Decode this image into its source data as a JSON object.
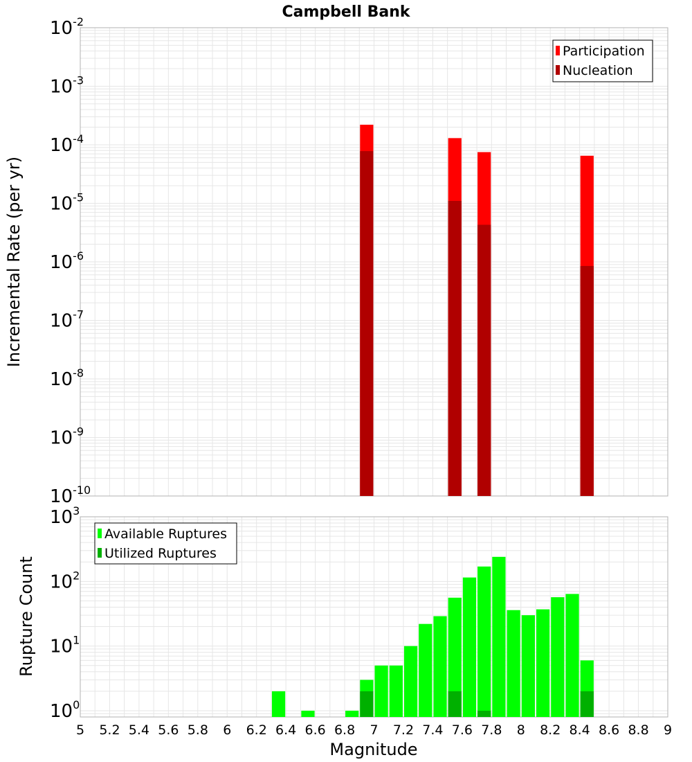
{
  "title": "Campbell Bank",
  "xlabel": "Magnitude",
  "x_ticks": [
    "5",
    "5.2",
    "5.4",
    "5.6",
    "5.8",
    "6",
    "6.2",
    "6.4",
    "6.6",
    "6.8",
    "7",
    "7.2",
    "7.4",
    "7.6",
    "7.8",
    "8",
    "8.2",
    "8.4",
    "8.6",
    "8.8",
    "9"
  ],
  "top_y_ticks": [
    {
      "base": "10",
      "exp": "-2"
    },
    {
      "base": "10",
      "exp": "-3"
    },
    {
      "base": "10",
      "exp": "-4"
    },
    {
      "base": "10",
      "exp": "-5"
    },
    {
      "base": "10",
      "exp": "-6"
    },
    {
      "base": "10",
      "exp": "-7"
    },
    {
      "base": "10",
      "exp": "-8"
    },
    {
      "base": "10",
      "exp": "-9"
    },
    {
      "base": "10",
      "exp": "-10"
    }
  ],
  "bottom_y_ticks": [
    {
      "base": "10",
      "exp": "3"
    },
    {
      "base": "10",
      "exp": "2"
    },
    {
      "base": "10",
      "exp": "1"
    },
    {
      "base": "10",
      "exp": "0"
    }
  ],
  "colors": {
    "participation": "#ff0000",
    "nucleation": "#b00000",
    "available": "#00ff00",
    "utilized": "#00b000",
    "grid": "#e6e6e6",
    "frame": "#b0b0b0"
  },
  "chart_data": [
    {
      "type": "bar",
      "title": "Campbell Bank",
      "xlabel": "Magnitude",
      "ylabel": "Incremental Rate (per yr)",
      "yscale": "log",
      "xlim": [
        5,
        9
      ],
      "ylim": [
        1e-10,
        0.01
      ],
      "bin_width": 0.1,
      "grid": true,
      "legend_position": "top-right",
      "series": [
        {
          "name": "Participation",
          "x": [
            6.95,
            7.55,
            7.75,
            8.45
          ],
          "values": [
            0.00022,
            0.00013,
            7.5e-05,
            6.5e-05
          ]
        },
        {
          "name": "Nucleation",
          "x": [
            6.95,
            7.55,
            7.75,
            8.45
          ],
          "values": [
            7.8e-05,
            1.1e-05,
            4.3e-06,
            8.5e-07
          ]
        }
      ]
    },
    {
      "type": "bar",
      "xlabel": "Magnitude",
      "ylabel": "Rupture Count",
      "yscale": "log",
      "xlim": [
        5,
        9
      ],
      "ylim": [
        0.8,
        1000
      ],
      "bin_width": 0.1,
      "grid": true,
      "legend_position": "top-left",
      "series": [
        {
          "name": "Available Ruptures",
          "x": [
            6.35,
            6.55,
            6.85,
            6.95,
            7.05,
            7.15,
            7.25,
            7.35,
            7.45,
            7.55,
            7.65,
            7.75,
            7.85,
            7.95,
            8.05,
            8.15,
            8.25,
            8.35,
            8.45
          ],
          "values": [
            2,
            1,
            1,
            3,
            5,
            5,
            10,
            22,
            29,
            56,
            115,
            170,
            240,
            36,
            30,
            37,
            57,
            64,
            6
          ]
        },
        {
          "name": "Utilized Ruptures",
          "x": [
            6.95,
            7.55,
            7.75,
            8.45
          ],
          "values": [
            2,
            2,
            1,
            2
          ]
        }
      ]
    }
  ]
}
